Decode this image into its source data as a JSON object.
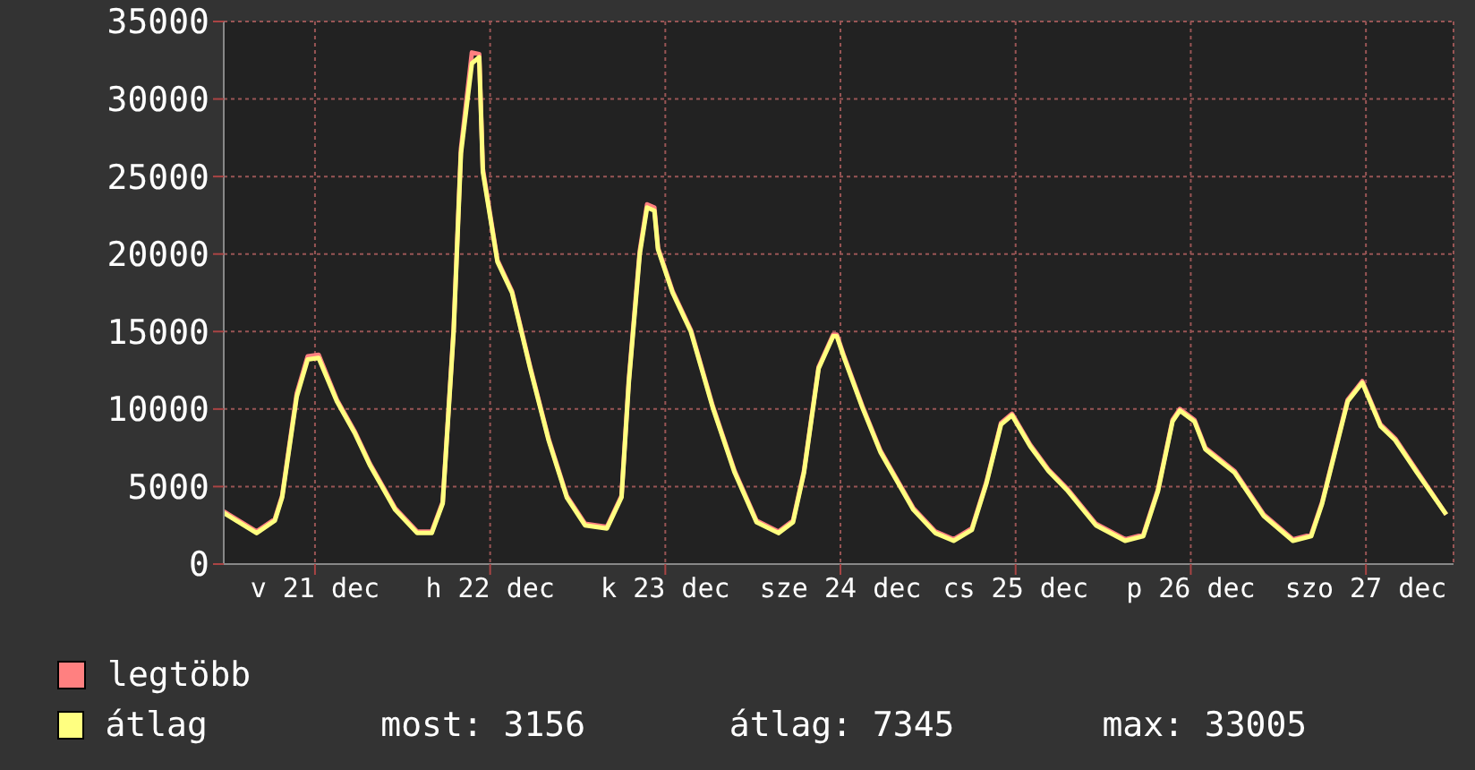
{
  "chart_data": {
    "type": "line",
    "x": [
      "--12-20T23:30",
      "--12-21T04:00",
      "--12-21T06:30",
      "--12-21T07:30",
      "--12-21T09:30",
      "--12-21T11:00",
      "--12-21T12:30",
      "--12-21T15:00",
      "--12-21T17:30",
      "--12-21T19:30",
      "--12-21T23:00",
      "--12-22T02:00",
      "--12-22T04:00",
      "--12-22T05:30",
      "--12-22T07:00",
      "--12-22T08:00",
      "--12-22T09:30",
      "--12-22T10:30",
      "--12-22T11:00",
      "--12-22T13:00",
      "--12-22T15:00",
      "--12-22T17:30",
      "--12-22T20:00",
      "--12-22T22:30",
      "--12-23T01:00",
      "--12-23T04:00",
      "--12-23T06:00",
      "--12-23T07:00",
      "--12-23T08:30",
      "--12-23T09:30",
      "--12-23T10:30",
      "--12-23T11:00",
      "--12-23T13:00",
      "--12-23T15:30",
      "--12-23T18:30",
      "--12-23T21:30",
      "--12-24T00:30",
      "--12-24T03:30",
      "--12-24T05:30",
      "--12-24T07:00",
      "--12-24T09:00",
      "--12-24T11:00",
      "--12-24T11:30",
      "--12-24T12:30",
      "--12-24T15:00",
      "--12-24T17:30",
      "--12-24T22:00",
      "--12-25T01:00",
      "--12-25T03:30",
      "--12-25T06:00",
      "--12-25T08:00",
      "--12-25T10:00",
      "--12-25T11:30",
      "--12-25T14:00",
      "--12-25T16:30",
      "--12-25T19:00",
      "--12-25T23:00",
      "--12-26T03:00",
      "--12-26T05:30",
      "--12-26T07:30",
      "--12-26T09:30",
      "--12-26T10:30",
      "--12-26T12:30",
      "--12-26T14:00",
      "--12-26T18:00",
      "--12-26T22:00",
      "--12-27T02:00",
      "--12-27T04:30",
      "--12-27T06:00",
      "--12-27T09:30",
      "--12-27T11:30",
      "--12-27T14:00",
      "--12-27T16:00",
      "--12-27T19:00",
      "--12-27T23:00"
    ],
    "series": [
      {
        "name": "legtöbb",
        "color": "#ff8080",
        "values": [
          3400,
          2100,
          2900,
          4400,
          11000,
          13400,
          13500,
          10600,
          8500,
          6500,
          3600,
          2100,
          2100,
          4000,
          15200,
          26800,
          33000,
          32900,
          25500,
          19600,
          17600,
          12700,
          8100,
          4400,
          2600,
          2400,
          4400,
          11900,
          20200,
          23200,
          23000,
          20400,
          17600,
          15100,
          10200,
          6000,
          2800,
          2100,
          2800,
          6000,
          12700,
          14800,
          14800,
          13400,
          10200,
          7300,
          3600,
          2100,
          1600,
          2300,
          5300,
          9100,
          9700,
          7700,
          6100,
          4900,
          2600,
          1600,
          1900,
          4800,
          9300,
          10000,
          9300,
          7500,
          6000,
          3200,
          1600,
          1900,
          4000,
          10600,
          11800,
          9000,
          8100,
          6000,
          3200
        ]
      },
      {
        "name": "átlag",
        "color": "#ffff80",
        "values": [
          3300,
          2000,
          2800,
          4300,
          10800,
          13200,
          13300,
          10500,
          8400,
          6400,
          3500,
          2000,
          2000,
          3900,
          15000,
          26500,
          32300,
          32700,
          25300,
          19500,
          17500,
          12600,
          8000,
          4300,
          2500,
          2300,
          4300,
          11700,
          20000,
          23000,
          22800,
          20300,
          17500,
          15000,
          10100,
          5900,
          2700,
          2000,
          2700,
          5900,
          12600,
          14700,
          14700,
          13300,
          10100,
          7200,
          3500,
          2000,
          1500,
          2200,
          5200,
          9000,
          9600,
          7600,
          6000,
          4800,
          2500,
          1500,
          1800,
          4700,
          9200,
          9900,
          9200,
          7400,
          5900,
          3100,
          1500,
          1800,
          3900,
          10500,
          11700,
          8900,
          8000,
          5900,
          3200
        ]
      }
    ],
    "xlim": [
      "--12-20T23:30",
      "--12-28T00:00"
    ],
    "xticks": [
      {
        "value": "--12-21T12:00",
        "label": "v 21 dec"
      },
      {
        "value": "--12-22T12:00",
        "label": "h 22 dec"
      },
      {
        "value": "--12-23T12:00",
        "label": "k 23 dec"
      },
      {
        "value": "--12-24T12:00",
        "label": "sze 24 dec"
      },
      {
        "value": "--12-25T12:00",
        "label": "cs 25 dec"
      },
      {
        "value": "--12-26T12:00",
        "label": "p 26 dec"
      },
      {
        "value": "--12-27T12:00",
        "label": "szo 27 dec"
      }
    ],
    "ylim": [
      0,
      35000
    ],
    "yticks": [
      0,
      5000,
      10000,
      15000,
      20000,
      25000,
      30000,
      35000
    ],
    "grid": true,
    "legend": "bottom",
    "marker": "none",
    "line_style": "solid",
    "annotations": [
      "most: 3156",
      "átlag: 7345",
      "max: 33005"
    ]
  }
}
